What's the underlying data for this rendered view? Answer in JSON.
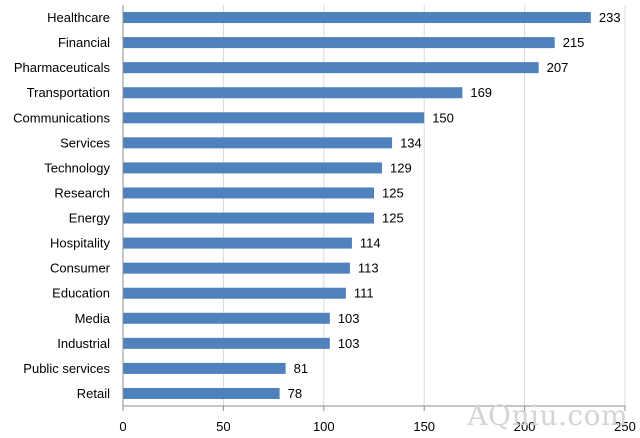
{
  "chart_data": {
    "type": "bar",
    "orientation": "horizontal",
    "categories": [
      "Healthcare",
      "Financial",
      "Pharmaceuticals",
      "Transportation",
      "Communications",
      "Services",
      "Technology",
      "Research",
      "Energy",
      "Hospitality",
      "Consumer",
      "Education",
      "Media",
      "Industrial",
      "Public services",
      "Retail"
    ],
    "values": [
      233,
      215,
      207,
      169,
      150,
      134,
      129,
      125,
      125,
      114,
      113,
      111,
      103,
      103,
      81,
      78
    ],
    "xlim": [
      0,
      250
    ],
    "xticks": [
      0,
      50,
      100,
      150,
      200,
      250
    ],
    "grid": "vertical",
    "legend": "none",
    "title": "",
    "xlabel": "",
    "ylabel": "",
    "bar_color": "#4f81bd",
    "grid_color": "#d9d9d9"
  },
  "watermark": "AQniu.com"
}
